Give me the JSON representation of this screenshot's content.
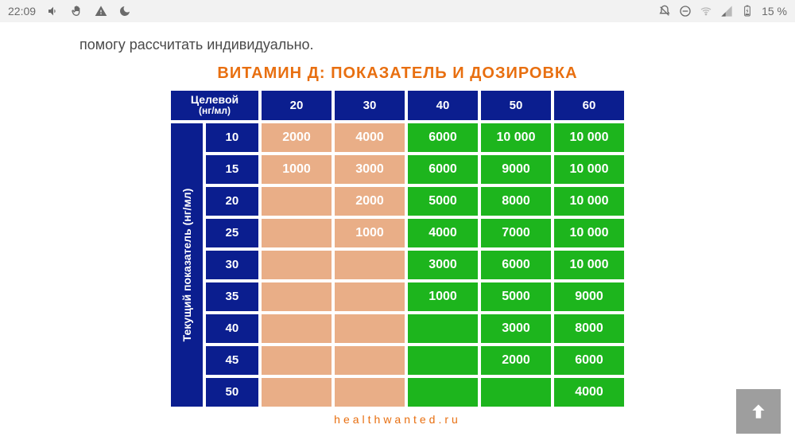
{
  "statusbar": {
    "time": "22:09",
    "battery_text": "15 %"
  },
  "lead_text": "помогу рассчитать индивидуально.",
  "chart": {
    "type": "table",
    "title": "ВИТАМИН Д: ПОКАЗАТЕЛЬ И ДОЗИРОВКА",
    "title_color": "#e86f10",
    "corner_label_line1": "Целевой",
    "corner_label_line2": "(нг/мл)",
    "side_label": "Текущий показатель (нг/мл)",
    "header_bg": "#0b1e8f",
    "low_bg": "#e9ae87",
    "high_bg": "#1db51d",
    "cell_text_color": "#ffffff",
    "columns": [
      "20",
      "30",
      "40",
      "50",
      "60"
    ],
    "row_labels": [
      "10",
      "15",
      "20",
      "25",
      "30",
      "35",
      "40",
      "45",
      "50"
    ],
    "rows": [
      [
        "2000",
        "4000",
        "6000",
        "10 000",
        "10 000"
      ],
      [
        "1000",
        "3000",
        "6000",
        "9000",
        "10 000"
      ],
      [
        "",
        "2000",
        "5000",
        "8000",
        "10 000"
      ],
      [
        "",
        "1000",
        "4000",
        "7000",
        "10 000"
      ],
      [
        "",
        "",
        "3000",
        "6000",
        "10 000"
      ],
      [
        "",
        "",
        "1000",
        "5000",
        "9000"
      ],
      [
        "",
        "",
        "",
        "3000",
        "8000"
      ],
      [
        "",
        "",
        "",
        "2000",
        "6000"
      ],
      [
        "",
        "",
        "",
        "",
        "4000"
      ]
    ],
    "footer_link": "healthwanted.ru",
    "footer_color": "#e86f10"
  },
  "fab": {
    "name": "scroll-to-top"
  }
}
